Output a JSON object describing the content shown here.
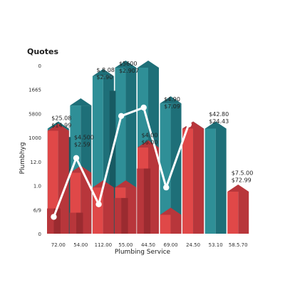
{
  "chart_data": {
    "type": "bar",
    "title": "Quotes",
    "xlabel": "Plumbing Service",
    "ylabel": "Plumbhyg",
    "y_tick_labels": [
      "0",
      "1665",
      "5800",
      "1000",
      "12.0",
      "1.0",
      "6/9",
      "0"
    ],
    "categories": [
      "72.00",
      "54.00",
      "112.00",
      "55.00",
      "44.50",
      "69.00",
      "24.50",
      "53.10",
      "58.5.70"
    ],
    "ylim": [
      0,
      8
    ],
    "series": [
      {
        "values": [
          5.0,
          6.1,
          7.5,
          7.9,
          7.9,
          6.2,
          5.0,
          5.0,
          0
        ]
      },
      {
        "values": [
          4.6,
          0,
          6.8,
          0,
          0,
          0,
          0,
          0,
          0
        ]
      },
      {
        "values": [
          4.9,
          2.9,
          2.2,
          2.2,
          4.1,
          0.9,
          5.0,
          0,
          2.0
        ]
      },
      {
        "values": [
          1.2,
          1.0,
          0,
          1.7,
          3.1,
          0,
          0,
          0,
          0
        ]
      }
    ],
    "line": [
      0.8,
      3.6,
      1.4,
      5.6,
      6.0,
      2.2,
      5.2,
      0,
      0
    ],
    "value_labels": [
      [
        "$25.08",
        "$14.99"
      ],
      [
        "$4.500",
        "$2.59"
      ],
      [
        "$ 8.08",
        "$2.90"
      ],
      [
        "$5600",
        "$2.907"
      ],
      [
        "$4.00",
        "$6.00"
      ],
      [
        "$4.90",
        "$7.09"
      ],
      [
        "$42.80",
        "$24.43"
      ],
      [
        "$7.5.00",
        "$72.99"
      ]
    ],
    "colors": {
      "teal": "#2f8f97",
      "teal_dark": "#1e6f78",
      "red": "#e04848",
      "red_dark": "#b8363b",
      "line": "#ffffff"
    }
  }
}
